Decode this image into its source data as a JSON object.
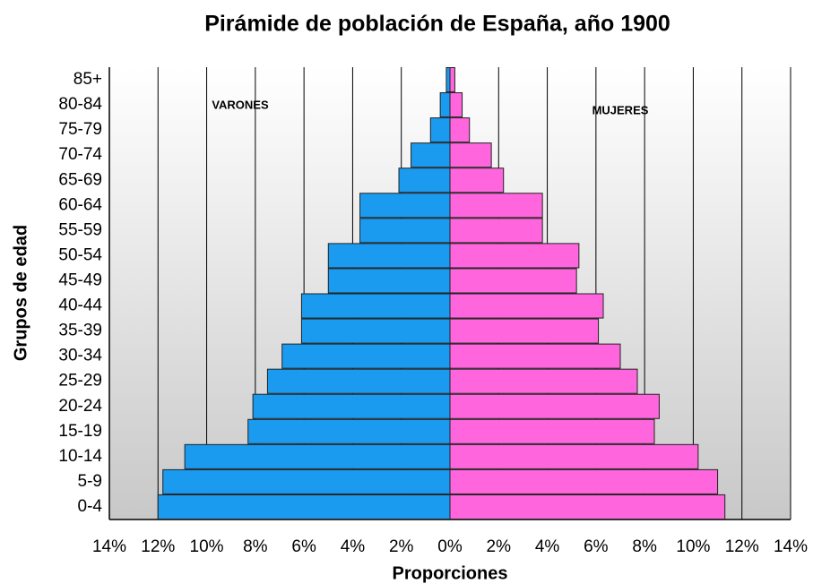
{
  "chart_data": {
    "type": "pyramid",
    "title": "Pirámide de población de España, año 1900",
    "xlabel": "Proporciones",
    "ylabel": "Grupos de edad",
    "categories": [
      "0-4",
      "5-9",
      "10-14",
      "15-19",
      "20-24",
      "25-29",
      "30-34",
      "35-39",
      "40-44",
      "45-49",
      "50-54",
      "55-59",
      "60-64",
      "65-69",
      "70-74",
      "75-79",
      "80-84",
      "85+"
    ],
    "series": [
      {
        "name": "VARONES",
        "color": "#1a9bf0",
        "values": [
          -12.0,
          -11.8,
          -10.9,
          -8.3,
          -8.1,
          -7.5,
          -6.9,
          -6.1,
          -6.1,
          -5.0,
          -5.0,
          -3.7,
          -3.7,
          -2.1,
          -1.6,
          -0.8,
          -0.4,
          -0.15
        ]
      },
      {
        "name": "MUJERES",
        "color": "#ff66dd",
        "values": [
          11.3,
          11.0,
          10.2,
          8.4,
          8.6,
          7.7,
          7.0,
          6.1,
          6.3,
          5.2,
          5.3,
          3.8,
          3.8,
          2.2,
          1.7,
          0.8,
          0.5,
          0.2
        ]
      }
    ],
    "xlim": [
      -14,
      14
    ],
    "xticks": [
      {
        "value": -14,
        "label": "14%"
      },
      {
        "value": -12,
        "label": "12%"
      },
      {
        "value": -10,
        "label": "10%"
      },
      {
        "value": -8,
        "label": "8%"
      },
      {
        "value": -6,
        "label": "6%"
      },
      {
        "value": -4,
        "label": "4%"
      },
      {
        "value": -2,
        "label": "2%"
      },
      {
        "value": 0,
        "label": "0%"
      },
      {
        "value": 2,
        "label": "2%"
      },
      {
        "value": 4,
        "label": "4%"
      },
      {
        "value": 6,
        "label": "6%"
      },
      {
        "value": 8,
        "label": "8%"
      },
      {
        "value": 10,
        "label": "10%"
      },
      {
        "value": 12,
        "label": "12%"
      },
      {
        "value": 14,
        "label": "14%"
      }
    ],
    "grid": true
  }
}
